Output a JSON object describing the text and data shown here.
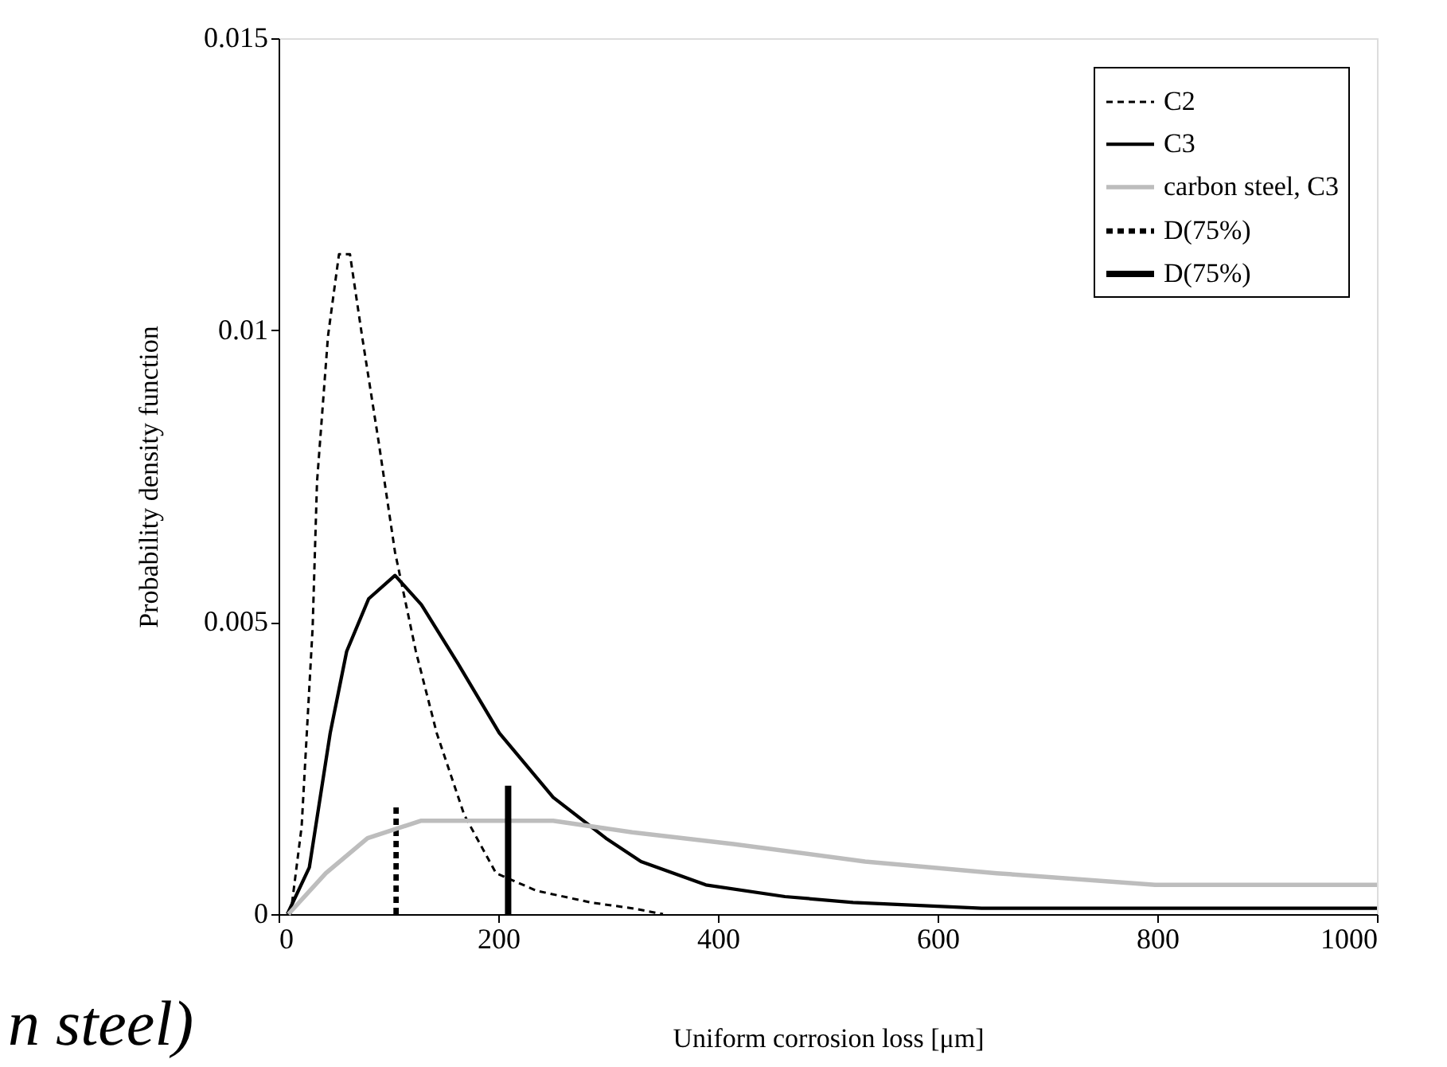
{
  "chart_data": {
    "type": "line",
    "xlabel": "Uniform corrosion loss [μm]",
    "ylabel": "Probability density function",
    "xlim": [
      0,
      1000
    ],
    "xticks": [
      0,
      200,
      400,
      600,
      800,
      1000
    ],
    "ylim": [
      0,
      0.015
    ],
    "yticks": [
      0,
      0.005,
      0.01,
      0.015
    ],
    "grid": false,
    "legend": "top right",
    "marker": "none",
    "series": [
      {
        "name": "C2",
        "color": "#000000",
        "line_style": "dashed",
        "x": [
          11,
          21,
          31,
          35,
          45,
          55,
          65,
          76,
          91,
          106,
          125,
          144,
          169,
          198,
          235,
          284,
          322,
          350
        ],
        "values": [
          0,
          0.0015,
          0.0049,
          0.0074,
          0.0099,
          0.0113,
          0.0113,
          0.0099,
          0.0081,
          0.0062,
          0.0045,
          0.0031,
          0.0017,
          0.0007,
          0.0004,
          0.0002,
          0.0001,
          0
        ]
      },
      {
        "name": "C3",
        "color": "#000000",
        "line_style": "solid",
        "x": [
          8,
          28,
          47,
          62,
          82,
          106,
          130,
          163,
          201,
          250,
          298,
          330,
          389,
          461,
          523,
          640,
          1000
        ],
        "values": [
          0,
          0.0008,
          0.0031,
          0.0045,
          0.0054,
          0.0058,
          0.0053,
          0.0043,
          0.0031,
          0.002,
          0.0013,
          0.0009,
          0.0005,
          0.0003,
          0.0002,
          0.0001,
          0.0001
        ]
      },
      {
        "name": "carbon steel, C3",
        "color": "#bdbdbd",
        "line_style": "solid",
        "x": [
          9,
          43,
          81,
          130,
          178,
          250,
          322,
          414,
          534,
          654,
          798,
          1000
        ],
        "values": [
          0,
          0.0007,
          0.0013,
          0.0016,
          0.0016,
          0.0016,
          0.0014,
          0.0012,
          0.0009,
          0.0007,
          0.0005,
          0.0005
        ]
      },
      {
        "name": "D(75%)",
        "color": "#000000",
        "line_style": "dashed",
        "x": [
          107,
          107
        ],
        "values": [
          0,
          0.0019
        ]
      },
      {
        "name": "D(75%)",
        "color": "#000000",
        "line_style": "solid",
        "x": [
          209,
          209
        ],
        "values": [
          0,
          0.0022
        ]
      }
    ],
    "annotations": [
      "n steel)"
    ]
  }
}
